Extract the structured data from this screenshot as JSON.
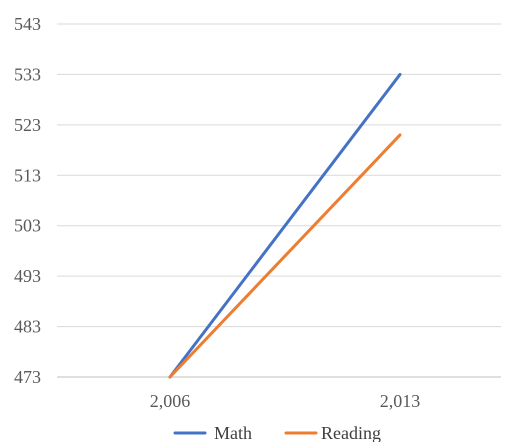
{
  "chart_data": {
    "type": "line",
    "x": [
      2006,
      2013
    ],
    "x_tick_labels": [
      "2,006",
      "2,013"
    ],
    "y_tick_labels": [
      "473",
      "483",
      "493",
      "503",
      "513",
      "523",
      "533",
      "543"
    ],
    "ylim": [
      473,
      543
    ],
    "grid": true,
    "legend_position": "bottom",
    "series": [
      {
        "name": "Math",
        "values": [
          473,
          533
        ],
        "color": "#4472C4"
      },
      {
        "name": "Reading",
        "values": [
          473,
          521
        ],
        "color": "#ED7D31"
      }
    ]
  }
}
